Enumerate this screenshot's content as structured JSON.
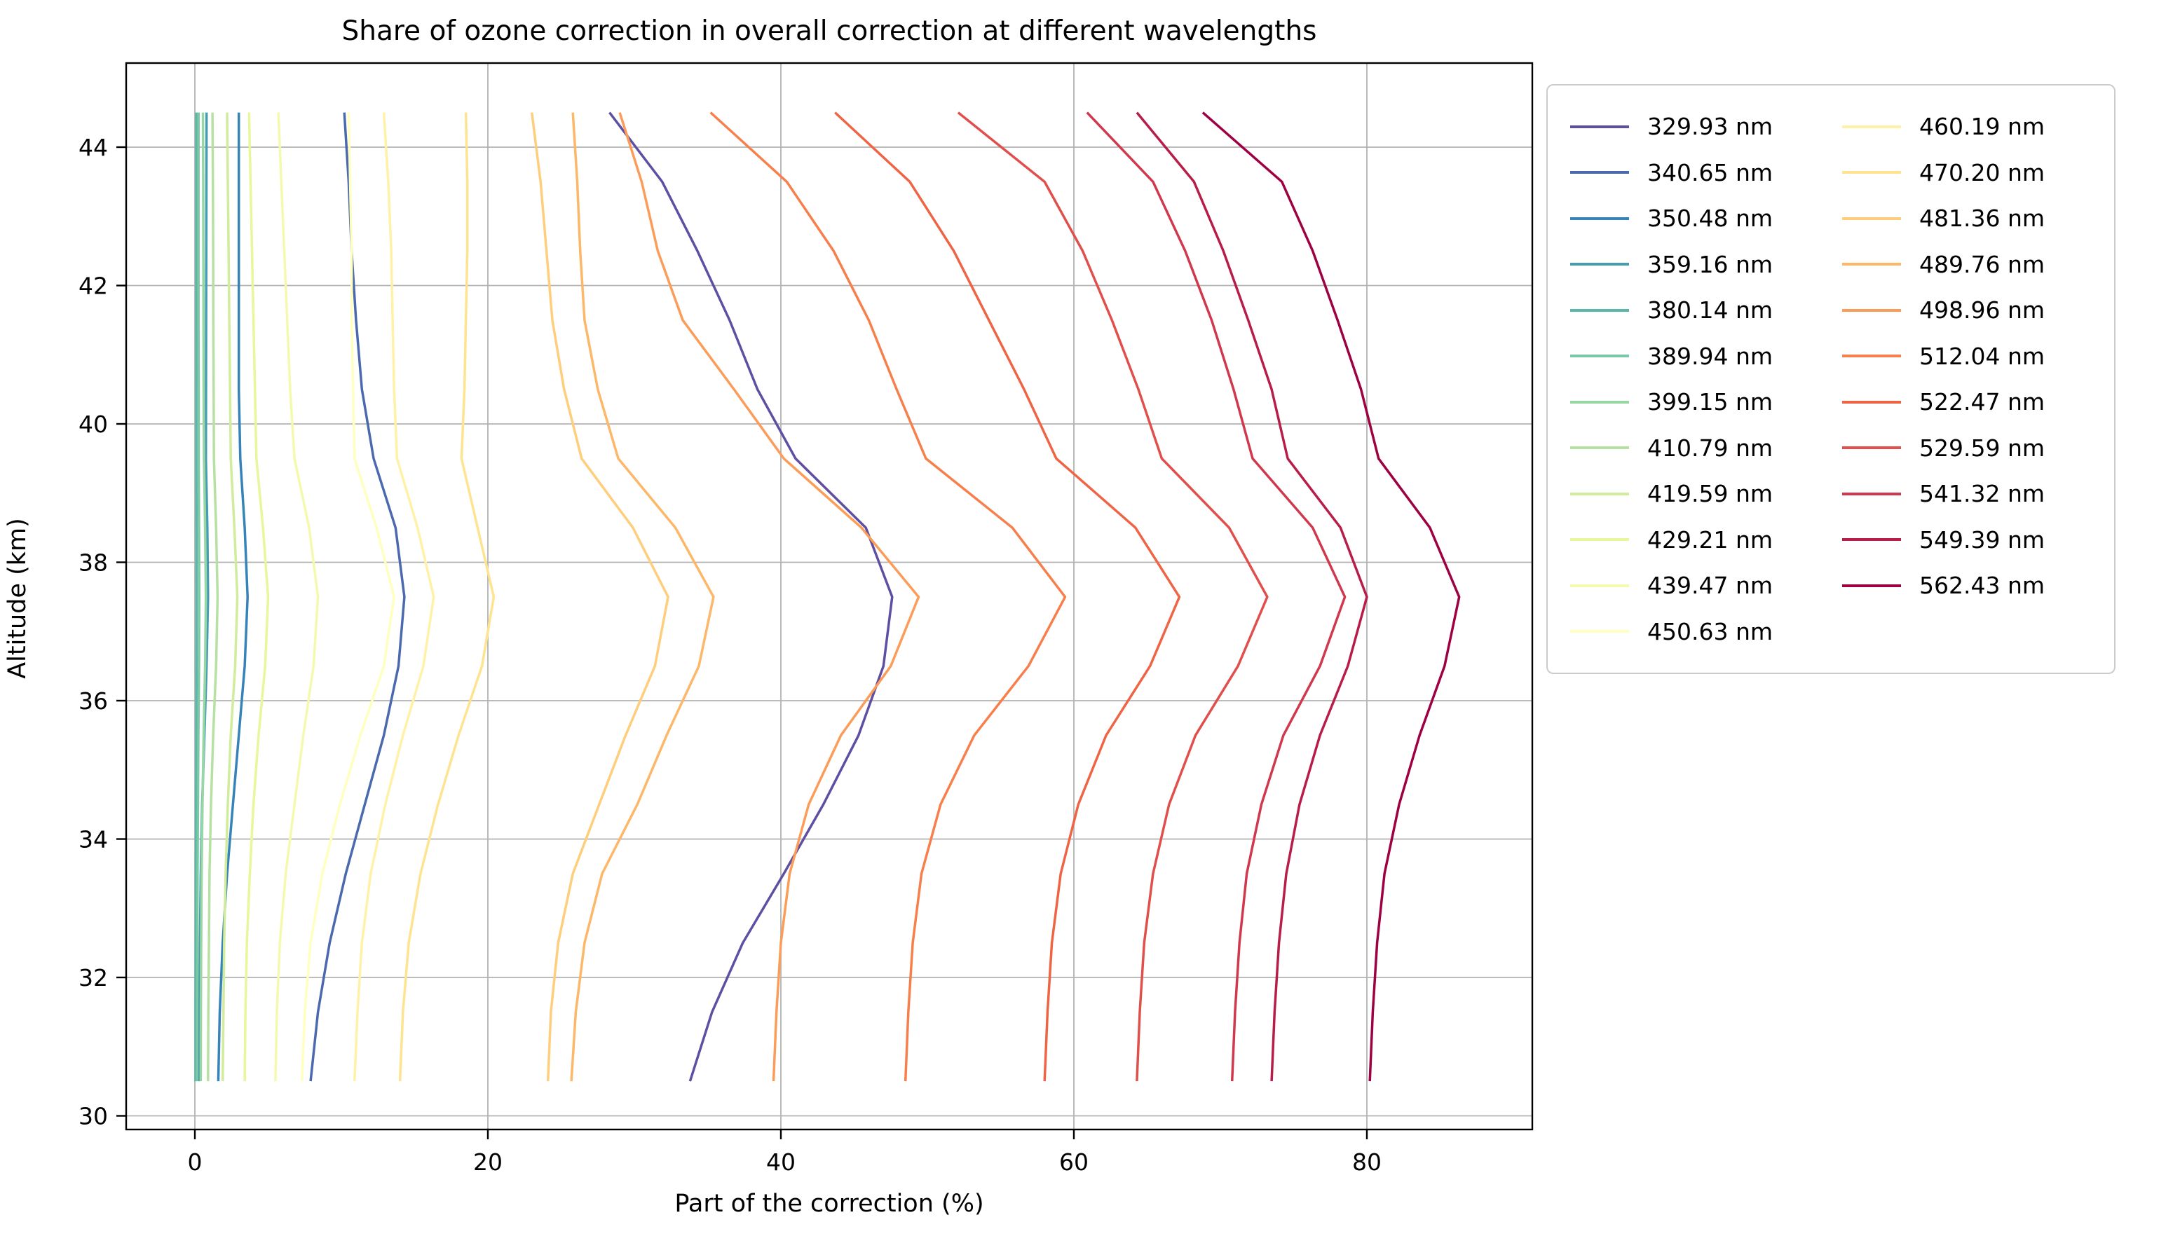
{
  "chart_data": {
    "type": "line",
    "title": "Share of ozone correction in overall correction at different wavelengths",
    "xlabel": "Part of the correction (%)",
    "ylabel": "Altitude (km)",
    "legend_position": "outside-right",
    "grid": true,
    "x_axis": {
      "ticks": [
        0,
        20,
        40,
        60,
        80
      ],
      "range": [
        -4.7,
        91.3
      ]
    },
    "y_axis": {
      "ticks": [
        30,
        32,
        34,
        36,
        38,
        40,
        42,
        44
      ],
      "range": [
        29.8,
        45.2
      ]
    },
    "altitudes_km": [
      30.5,
      31.5,
      32.5,
      33.5,
      34.5,
      35.5,
      36.5,
      37.5,
      38.5,
      39.5,
      40.5,
      41.5,
      42.5,
      43.5,
      44.5
    ],
    "series": [
      {
        "name": "329.93 nm",
        "color": "#5E4FA2",
        "values": [
          33.8,
          35.3,
          37.4,
          40.2,
          42.9,
          45.3,
          47.0,
          47.6,
          45.8,
          41.0,
          38.4,
          36.5,
          34.3,
          31.9,
          28.3
        ]
      },
      {
        "name": "340.65 nm",
        "color": "#4A69AE",
        "values": [
          7.9,
          8.4,
          9.2,
          10.3,
          11.6,
          12.9,
          13.9,
          14.3,
          13.7,
          12.2,
          11.4,
          11.0,
          10.7,
          10.5,
          10.2
        ]
      },
      {
        "name": "350.48 nm",
        "color": "#3683BA",
        "values": [
          1.6,
          1.7,
          1.9,
          2.2,
          2.6,
          3.0,
          3.4,
          3.6,
          3.4,
          3.1,
          3.0,
          3.0,
          3.0,
          3.0,
          3.0
        ]
      },
      {
        "name": "359.16 nm",
        "color": "#459DB4",
        "values": [
          0.3,
          0.3,
          0.35,
          0.4,
          0.5,
          0.65,
          0.8,
          0.9,
          0.85,
          0.75,
          0.76,
          0.77,
          0.78,
          0.79,
          0.8
        ]
      },
      {
        "name": "380.14 nm",
        "color": "#5CB7A9",
        "values": [
          0.05,
          0.05,
          0.06,
          0.07,
          0.08,
          0.1,
          0.11,
          0.12,
          0.11,
          0.1,
          0.1,
          0.1,
          0.1,
          0.1,
          0.1
        ]
      },
      {
        "name": "389.94 nm",
        "color": "#79C9A5",
        "values": [
          0.15,
          0.16,
          0.17,
          0.18,
          0.21,
          0.24,
          0.28,
          0.3,
          0.28,
          0.26,
          0.26,
          0.25,
          0.25,
          0.25,
          0.25
        ]
      },
      {
        "name": "399.15 nm",
        "color": "#98D6A4",
        "values": [
          0.4,
          0.41,
          0.43,
          0.46,
          0.52,
          0.6,
          0.7,
          0.75,
          0.7,
          0.62,
          0.6,
          0.59,
          0.58,
          0.57,
          0.55
        ]
      },
      {
        "name": "410.79 nm",
        "color": "#B6E1A2",
        "values": [
          0.9,
          0.92,
          0.96,
          1.0,
          1.1,
          1.25,
          1.45,
          1.55,
          1.45,
          1.3,
          1.28,
          1.26,
          1.25,
          1.23,
          1.2
        ]
      },
      {
        "name": "419.59 nm",
        "color": "#D0EC9C",
        "values": [
          1.9,
          1.95,
          2.0,
          2.1,
          2.25,
          2.45,
          2.75,
          2.9,
          2.7,
          2.45,
          2.4,
          2.35,
          2.3,
          2.25,
          2.2
        ]
      },
      {
        "name": "429.21 nm",
        "color": "#E8F69C",
        "values": [
          3.4,
          3.45,
          3.55,
          3.75,
          4.0,
          4.35,
          4.8,
          5.0,
          4.65,
          4.2,
          4.1,
          4.0,
          3.9,
          3.8,
          3.7
        ]
      },
      {
        "name": "439.47 nm",
        "color": "#F4FAAD",
        "values": [
          5.5,
          5.6,
          5.8,
          6.2,
          6.8,
          7.4,
          8.1,
          8.4,
          7.8,
          6.8,
          6.5,
          6.3,
          6.1,
          5.9,
          5.7
        ]
      },
      {
        "name": "450.63 nm",
        "color": "#FFFFBF",
        "values": [
          7.3,
          7.5,
          7.9,
          8.7,
          9.9,
          11.3,
          12.9,
          13.6,
          12.4,
          10.9,
          10.8,
          10.7,
          10.7,
          10.6,
          10.5
        ]
      },
      {
        "name": "460.19 nm",
        "color": "#FFF1A7",
        "values": [
          10.9,
          11.1,
          11.4,
          12.0,
          13.0,
          14.2,
          15.6,
          16.3,
          15.2,
          13.8,
          13.6,
          13.5,
          13.4,
          13.2,
          12.9
        ]
      },
      {
        "name": "470.20 nm",
        "color": "#FEE390",
        "values": [
          14.0,
          14.2,
          14.6,
          15.4,
          16.6,
          18.0,
          19.6,
          20.4,
          19.3,
          18.2,
          18.4,
          18.5,
          18.6,
          18.6,
          18.5
        ]
      },
      {
        "name": "481.36 nm",
        "color": "#FECE7C",
        "values": [
          24.1,
          24.3,
          24.8,
          25.8,
          27.6,
          29.4,
          31.4,
          32.3,
          29.9,
          26.4,
          25.2,
          24.4,
          24.0,
          23.6,
          23.0
        ]
      },
      {
        "name": "489.76 nm",
        "color": "#FDB769",
        "values": [
          25.7,
          26.0,
          26.6,
          27.8,
          30.2,
          32.2,
          34.4,
          35.4,
          32.8,
          28.9,
          27.5,
          26.6,
          26.3,
          26.1,
          25.8
        ]
      },
      {
        "name": "498.96 nm",
        "color": "#FB9C59",
        "values": [
          39.5,
          39.7,
          40.0,
          40.6,
          41.9,
          44.1,
          47.5,
          49.4,
          45.5,
          40.2,
          36.8,
          33.3,
          31.6,
          30.5,
          29.0
        ]
      },
      {
        "name": "512.04 nm",
        "color": "#F77F4B",
        "values": [
          48.5,
          48.7,
          49.0,
          49.6,
          50.9,
          53.2,
          56.9,
          59.4,
          55.8,
          49.9,
          47.9,
          46.0,
          43.6,
          40.4,
          35.2
        ]
      },
      {
        "name": "522.47 nm",
        "color": "#EE6445",
        "values": [
          58.0,
          58.2,
          58.5,
          59.1,
          60.3,
          62.2,
          65.2,
          67.2,
          64.2,
          58.8,
          56.6,
          54.2,
          51.8,
          48.8,
          43.7
        ]
      },
      {
        "name": "529.59 nm",
        "color": "#E04F4B",
        "values": [
          64.3,
          64.5,
          64.8,
          65.4,
          66.5,
          68.3,
          71.2,
          73.2,
          70.6,
          66.0,
          64.4,
          62.6,
          60.6,
          58.0,
          52.1
        ]
      },
      {
        "name": "541.32 nm",
        "color": "#D0384E",
        "values": [
          70.8,
          71.0,
          71.3,
          71.8,
          72.8,
          74.3,
          76.8,
          78.5,
          76.3,
          72.2,
          70.9,
          69.4,
          67.6,
          65.4,
          60.9
        ]
      },
      {
        "name": "549.39 nm",
        "color": "#B71D48",
        "values": [
          73.5,
          73.7,
          74.0,
          74.5,
          75.4,
          76.8,
          78.7,
          80.0,
          78.2,
          74.6,
          73.5,
          71.9,
          70.2,
          68.2,
          64.3
        ]
      },
      {
        "name": "562.43 nm",
        "color": "#9E0142",
        "values": [
          80.2,
          80.4,
          80.7,
          81.2,
          82.2,
          83.6,
          85.3,
          86.3,
          84.3,
          80.8,
          79.6,
          78.0,
          76.3,
          74.2,
          68.8
        ]
      }
    ],
    "style": {
      "grid_color": "#b2b2b2",
      "spine_color": "#000000",
      "background": "#ffffff",
      "line_width": 3.5
    }
  }
}
